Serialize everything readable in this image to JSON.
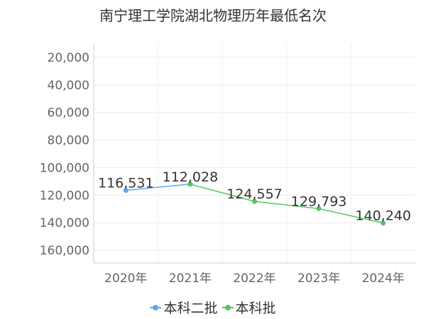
{
  "chart_data": {
    "type": "line",
    "title": "南宁理工学院湖北物理历年最低名次",
    "xlabel": "",
    "ylabel": "",
    "categories": [
      "2020年",
      "2021年",
      "2022年",
      "2023年",
      "2024年"
    ],
    "y_inverted": true,
    "ylim": [
      160000,
      20000
    ],
    "y_ticks": [
      20000,
      40000,
      60000,
      80000,
      100000,
      120000,
      140000,
      160000
    ],
    "y_tick_labels": [
      "20,000",
      "40,000",
      "60,000",
      "80,000",
      "100,000",
      "120,000",
      "140,000",
      "160,000"
    ],
    "grid": true,
    "legend_position": "bottom",
    "series": [
      {
        "name": "本科二批",
        "color": "#5aa9f4",
        "values": [
          116531,
          112028,
          null,
          null,
          null
        ],
        "labels": [
          "116,531",
          "112,028",
          "",
          "",
          ""
        ]
      },
      {
        "name": "本科批",
        "color": "#52c65a",
        "values": [
          null,
          112028,
          124557,
          129793,
          140240
        ],
        "labels": [
          "",
          "",
          "124,557",
          "129,793",
          "140,240"
        ]
      }
    ]
  }
}
